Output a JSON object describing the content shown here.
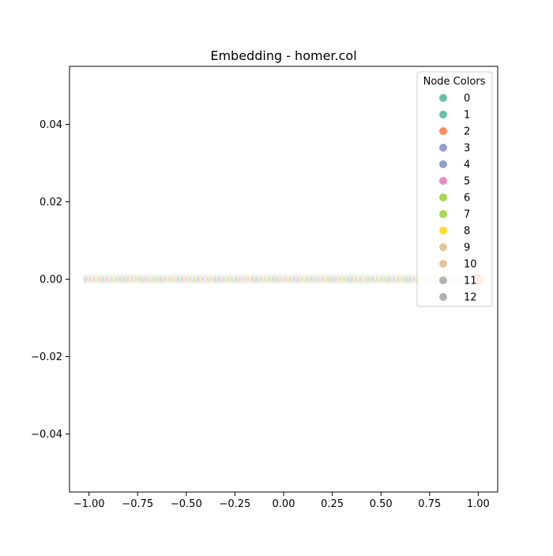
{
  "chart_data": {
    "type": "scatter",
    "title": "Embedding - homer.col",
    "xlabel": "",
    "ylabel": "",
    "xlim": [
      -1.1,
      1.1
    ],
    "ylim": [
      -0.055,
      0.055
    ],
    "xticks": [
      -1.0,
      -0.75,
      -0.5,
      -0.25,
      0.0,
      0.25,
      0.5,
      0.75,
      1.0
    ],
    "xtick_labels": [
      "−1.00",
      "−0.75",
      "−0.50",
      "−0.25",
      "0.00",
      "0.25",
      "0.50",
      "0.75",
      "1.00"
    ],
    "yticks": [
      0.04,
      0.02,
      0.0,
      -0.02,
      -0.04
    ],
    "ytick_labels": [
      "0.04",
      "0.02",
      "0.00",
      "−0.02",
      "−0.04"
    ],
    "grid": false,
    "legend": {
      "title": "Node Colors",
      "placement": "top-right",
      "entries": [
        {
          "label": "0",
          "color": "#66c2a5"
        },
        {
          "label": "1",
          "color": "#66c2a5"
        },
        {
          "label": "2",
          "color": "#fc8d62"
        },
        {
          "label": "3",
          "color": "#8da0cb"
        },
        {
          "label": "4",
          "color": "#8da0cb"
        },
        {
          "label": "5",
          "color": "#e78ac3"
        },
        {
          "label": "6",
          "color": "#a6d854"
        },
        {
          "label": "7",
          "color": "#a6d854"
        },
        {
          "label": "8",
          "color": "#ffd92f"
        },
        {
          "label": "9",
          "color": "#e5c494"
        },
        {
          "label": "10",
          "color": "#e5c494"
        },
        {
          "label": "11",
          "color": "#b3b3b3"
        },
        {
          "label": "12",
          "color": "#b3b3b3"
        }
      ]
    },
    "series": [
      {
        "x_min": -1.0,
        "x_max": 1.0,
        "y": 0.0,
        "points": 400,
        "color_cycle": [
          0,
          2,
          4,
          1,
          6,
          3,
          8,
          5,
          9,
          7,
          10,
          12,
          11
        ]
      }
    ]
  }
}
